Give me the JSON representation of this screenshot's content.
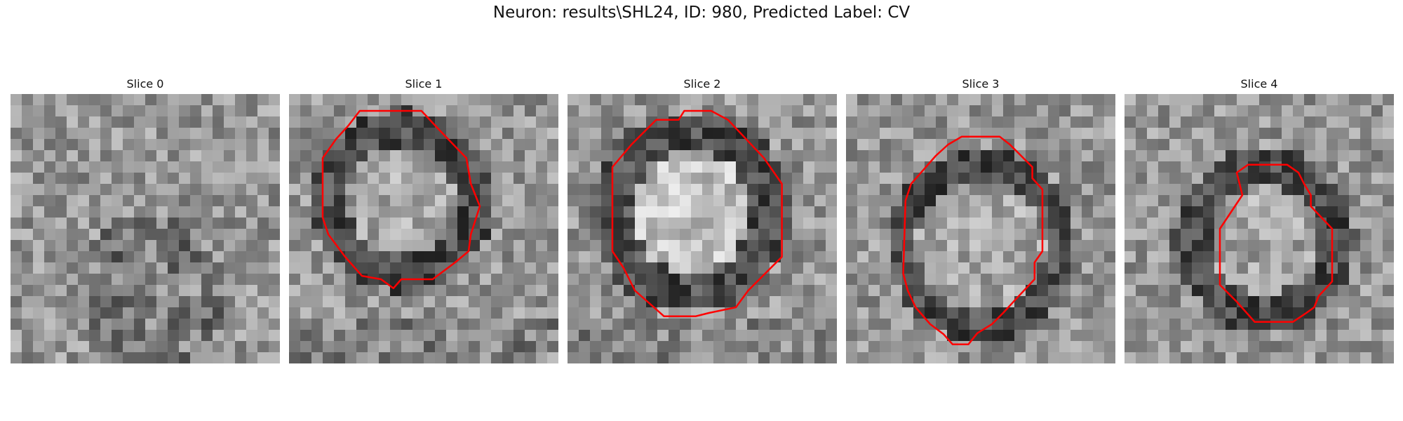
{
  "figure": {
    "title": "Neuron: results\\SHL24, ID: 980, Predicted Label: CV"
  },
  "panels": [
    {
      "title": "Slice 0",
      "has_contour": false,
      "contour_color": "#ff0000"
    },
    {
      "title": "Slice 1",
      "has_contour": true,
      "contour_color": "#ff0000"
    },
    {
      "title": "Slice 2",
      "has_contour": true,
      "contour_color": "#ff0000"
    },
    {
      "title": "Slice 3",
      "has_contour": true,
      "contour_color": "#ff0000"
    },
    {
      "title": "Slice 4",
      "has_contour": true,
      "contour_color": "#ff0000"
    }
  ]
}
